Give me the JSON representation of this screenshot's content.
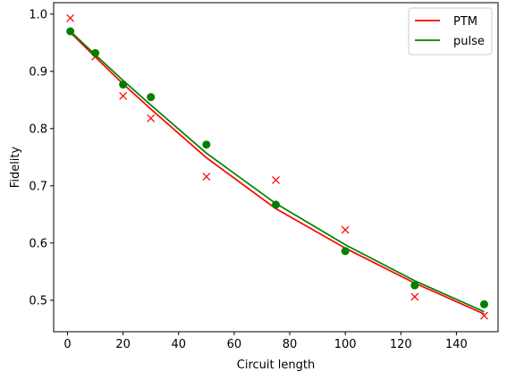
{
  "chart_data": {
    "type": "line",
    "title": "",
    "xlabel": "Circuit length",
    "ylabel": "Fidelity",
    "xlim": [
      -5,
      155
    ],
    "ylim": [
      0.445,
      1.02
    ],
    "xticks": [
      0,
      20,
      40,
      60,
      80,
      100,
      120,
      140
    ],
    "yticks": [
      0.5,
      0.6,
      0.7,
      0.8,
      0.9,
      1.0
    ],
    "ytick_labels": [
      "0.5",
      "0.6",
      "0.7",
      "0.8",
      "0.9",
      "1.0"
    ],
    "grid": false,
    "legend_position": "top-right",
    "series": [
      {
        "name": "PTM",
        "kind": "line",
        "color": "#ff0000",
        "x": [
          1,
          10,
          20,
          30,
          50,
          75,
          100,
          125,
          150
        ],
        "y": [
          0.968,
          0.925,
          0.878,
          0.834,
          0.749,
          0.66,
          0.591,
          0.53,
          0.476
        ]
      },
      {
        "name": "pulse",
        "kind": "line",
        "color": "#008000",
        "x": [
          1,
          10,
          20,
          30,
          50,
          75,
          100,
          125,
          150
        ],
        "y": [
          0.97,
          0.929,
          0.884,
          0.841,
          0.757,
          0.669,
          0.597,
          0.534,
          0.48
        ]
      },
      {
        "kind": "markers",
        "marker": "x",
        "color": "#ff0000",
        "x": [
          1,
          10,
          20,
          30,
          50,
          75,
          100,
          125,
          150
        ],
        "y": [
          0.993,
          0.926,
          0.857,
          0.818,
          0.716,
          0.71,
          0.623,
          0.506,
          0.473
        ]
      },
      {
        "kind": "markers",
        "marker": "o",
        "color": "#008000",
        "x": [
          1,
          10,
          20,
          30,
          50,
          75,
          100,
          125,
          150
        ],
        "y": [
          0.97,
          0.932,
          0.877,
          0.855,
          0.772,
          0.667,
          0.586,
          0.526,
          0.493
        ]
      }
    ]
  }
}
